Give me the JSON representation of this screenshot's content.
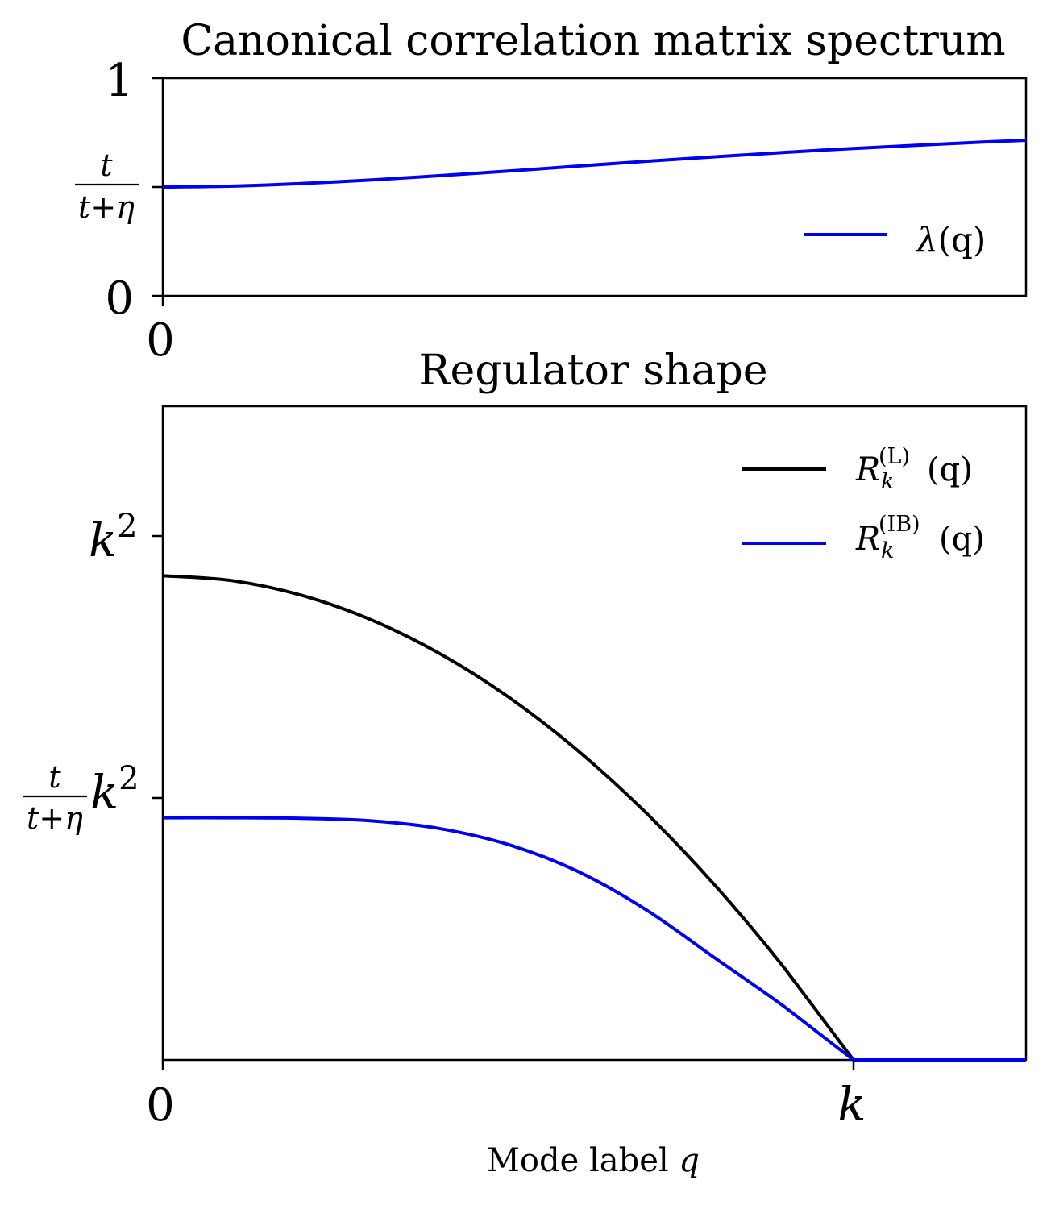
{
  "chart_data": [
    {
      "type": "line",
      "title": "Canonical correlation matrix spectrum",
      "xlabel": "",
      "ylabel": "",
      "xlim": [
        0,
        1.25
      ],
      "ylim": [
        0,
        1
      ],
      "x_ticks": [
        {
          "value": 0,
          "label": "0"
        }
      ],
      "y_ticks": [
        {
          "value": 0,
          "label": "0"
        },
        {
          "value": 0.5,
          "label_num": "t",
          "label_den": "t+η"
        },
        {
          "value": 1,
          "label": "1"
        }
      ],
      "legend_position": "lower-right",
      "grid": false,
      "series": [
        {
          "name_base": "λ",
          "name_arg": "(q)",
          "color": "#0000ee",
          "x": [
            0,
            0.1,
            0.2,
            0.3,
            0.4,
            0.5,
            0.6,
            0.7,
            0.8,
            0.9,
            1.0,
            1.1,
            1.2,
            1.25
          ],
          "y": [
            0.5,
            0.504,
            0.516,
            0.532,
            0.552,
            0.573,
            0.596,
            0.618,
            0.639,
            0.659,
            0.677,
            0.693,
            0.708,
            0.715
          ]
        }
      ]
    },
    {
      "type": "line",
      "title": "Regulator shape",
      "xlabel_text": "Mode label ",
      "xlabel_var": "q",
      "xlim": [
        0,
        1.25
      ],
      "ylim": [
        0,
        1.35
      ],
      "x_ticks": [
        {
          "value": 0,
          "label": "0"
        },
        {
          "value": 1,
          "label": "k"
        }
      ],
      "y_ticks": [
        {
          "value": 0.5,
          "label_num": "t",
          "label_den": "t+η",
          "label_var": "k",
          "label_sup": "2"
        },
        {
          "value": 1.0,
          "label_var": "k",
          "label_sup": "2"
        }
      ],
      "legend_position": "top-right",
      "grid": false,
      "series": [
        {
          "name_base": "R",
          "name_sub": "k",
          "name_sup": "(L)",
          "name_arg": "(q)",
          "color": "#000000",
          "x": [
            0,
            0.1,
            0.2,
            0.3,
            0.4,
            0.5,
            0.6,
            0.7,
            0.8,
            0.9,
            1.0,
            1.1,
            1.25
          ],
          "y": [
            1.0,
            0.99,
            0.96,
            0.91,
            0.84,
            0.75,
            0.64,
            0.51,
            0.36,
            0.19,
            0,
            0,
            0
          ]
        },
        {
          "name_base": "R",
          "name_sub": "k",
          "name_sup": "(IB)",
          "name_arg": "(q)",
          "color": "#0000ee",
          "x": [
            0,
            0.1,
            0.2,
            0.3,
            0.4,
            0.5,
            0.6,
            0.7,
            0.8,
            0.9,
            1.0,
            1.1,
            1.25
          ],
          "y": [
            0.5,
            0.5,
            0.499,
            0.494,
            0.478,
            0.445,
            0.39,
            0.31,
            0.21,
            0.11,
            0,
            0,
            0
          ]
        }
      ]
    }
  ]
}
